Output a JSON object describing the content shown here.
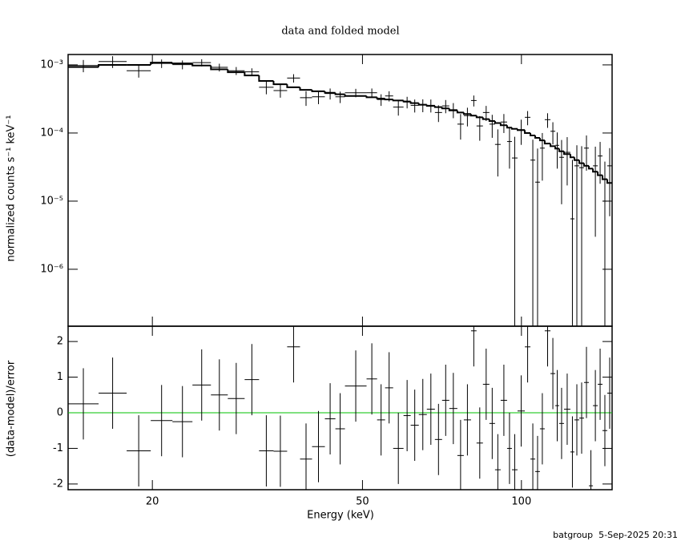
{
  "chart_data": [
    {
      "type": "errorbar",
      "title": "data and folded model",
      "y_label": "normalized counts s⁻¹ keV⁻¹",
      "xlog": true,
      "ylog": true,
      "xlim": [
        13.85,
        148.5
      ],
      "ylim": [
        1.46e-07,
        0.00142
      ],
      "yticks": [
        {
          "value": 1e-06,
          "label": "10⁻⁶"
        },
        {
          "value": 1e-05,
          "label": "10⁻⁵"
        },
        {
          "value": 0.0001,
          "label": "10⁻⁴"
        },
        {
          "value": 0.001,
          "label": "10⁻³"
        }
      ],
      "energy_lo": [
        13.85,
        15.82,
        17.88,
        19.86,
        21.83,
        23.82,
        25.82,
        27.79,
        29.91,
        31.85,
        33.93,
        36.0,
        38.08,
        40.13,
        42.44,
        44.43,
        46.32,
        50.9,
        53.29,
        55.18,
        57.16,
        59.8,
        61.7,
        63.92,
        66.2,
        68.57,
        70.75,
        73.01,
        75.63,
        77.78,
        80.27,
        82.23,
        84.55,
        86.96,
        89.12,
        91.34,
        93.94,
        95.94,
        98.32,
        101.5,
        104.0,
        106.2,
        108.4,
        110.7,
        113.5,
        115.9,
        117.9,
        120.4,
        123.8,
        126.0,
        128.7,
        131.4,
        134.2,
        136.6,
        139.5,
        142.4,
        145.4
      ],
      "energy_hi": [
        15.82,
        17.88,
        19.86,
        21.83,
        23.82,
        25.82,
        27.79,
        29.91,
        31.85,
        33.93,
        36.0,
        38.08,
        40.13,
        42.44,
        44.43,
        46.32,
        50.9,
        53.29,
        55.18,
        57.16,
        59.8,
        61.7,
        63.92,
        66.2,
        68.57,
        70.75,
        73.01,
        75.63,
        77.78,
        80.27,
        82.23,
        84.55,
        86.96,
        89.12,
        91.34,
        93.94,
        95.94,
        98.32,
        101.5,
        104.0,
        106.2,
        108.4,
        110.7,
        113.5,
        115.9,
        117.9,
        120.4,
        123.8,
        126.0,
        128.7,
        131.4,
        134.2,
        136.6,
        139.5,
        142.4,
        145.4,
        148.5
      ],
      "values": [
        0.00098,
        0.00112,
        0.00082,
        0.00105,
        0.00101,
        0.00108,
        0.00092,
        0.00082,
        0.00079,
        0.00047,
        0.00042,
        0.00064,
        0.00033,
        0.00034,
        0.00038,
        0.00034,
        0.00039,
        0.00039,
        0.00031,
        0.00035,
        0.00024,
        0.000285,
        0.000255,
        0.000257,
        0.000255,
        0.0002,
        0.00025,
        0.00022,
        0.000135,
        0.00018,
        0.0003,
        0.000127,
        0.0002,
        0.000135,
        6.8e-05,
        0.000145,
        7.5e-05,
        4.3e-05,
        0.000112,
        0.00017,
        4e-05,
        1.9e-05,
        6e-05,
        0.000157,
        0.000106,
        6.6e-05,
        4.4e-05,
        5.2e-05,
        5.5e-06,
        3.3e-05,
        3.1e-05,
        6e-05,
        -3.2e-05,
        3.3e-05,
        4.6e-05,
        1e-05,
        3.3e-05
      ],
      "errors": [
        0.0002,
        0.00022,
        0.00017,
        0.00015,
        0.00015,
        0.00013,
        0.00012,
        0.00011,
        0.0001,
        0.0001,
        9e-05,
        9e-05,
        8e-05,
        7.5e-05,
        7e-05,
        6.5e-05,
        5.5e-05,
        6e-05,
        6e-05,
        6e-05,
        6e-05,
        5.5e-05,
        5.5e-05,
        5.5e-05,
        5.5e-05,
        5.5e-05,
        5.5e-05,
        5.5e-05,
        5.5e-05,
        5.5e-05,
        5.5e-05,
        5e-05,
        5e-05,
        5e-05,
        4.5e-05,
        4.5e-05,
        4.5e-05,
        4.5e-05,
        4.5e-05,
        4e-05,
        4e-05,
        4e-05,
        4e-05,
        3.8e-05,
        3.8e-05,
        3.6e-05,
        3.5e-05,
        3.5e-05,
        3.5e-05,
        3.3e-05,
        3.3e-05,
        3.2e-05,
        3e-05,
        3e-05,
        2.8e-05,
        2.8e-05,
        2.7e-05
      ],
      "model": [
        0.00093,
        0.001,
        0.001,
        0.00108,
        0.00105,
        0.00098,
        0.00086,
        0.00078,
        0.0007,
        0.00058,
        0.00052,
        0.00047,
        0.00043,
        0.00041,
        0.00039,
        0.00037,
        0.00035,
        0.000335,
        0.00032,
        0.00031,
        0.0003,
        0.00029,
        0.000275,
        0.00026,
        0.00025,
        0.00024,
        0.00023,
        0.000215,
        0.0002,
        0.00019,
        0.00018,
        0.00017,
        0.00016,
        0.00015,
        0.00014,
        0.00013,
        0.00012,
        0.000115,
        0.00011,
        0.0001,
        9.2e-05,
        8.5e-05,
        7.8e-05,
        7e-05,
        6.4e-05,
        5.9e-05,
        5.4e-05,
        4.9e-05,
        4.4e-05,
        4e-05,
        3.6e-05,
        3.3e-05,
        3e-05,
        2.7e-05,
        2.4e-05,
        2.1e-05,
        1.85e-05
      ],
      "color": "#000000"
    },
    {
      "type": "errorbar",
      "x_label": "Energy (keV)",
      "y_label": "(data-model)/error",
      "xlog": true,
      "xlim": [
        13.85,
        148.5
      ],
      "xticks": [
        20,
        50,
        100
      ],
      "ylim": [
        -2.16,
        2.43
      ],
      "yticks": [
        -2,
        -1,
        0,
        1,
        2
      ],
      "energy_lo": [
        13.85,
        15.82,
        17.88,
        19.86,
        21.83,
        23.82,
        25.82,
        27.79,
        29.91,
        31.85,
        33.93,
        36.0,
        38.08,
        40.13,
        42.44,
        44.43,
        46.32,
        50.9,
        53.29,
        55.18,
        57.16,
        59.8,
        61.7,
        63.92,
        66.2,
        68.57,
        70.75,
        73.01,
        75.63,
        77.78,
        80.27,
        82.23,
        84.55,
        86.96,
        89.12,
        91.34,
        93.94,
        95.94,
        98.32,
        101.5,
        104.0,
        106.2,
        108.4,
        110.7,
        113.5,
        115.9,
        117.9,
        120.4,
        123.8,
        126.0,
        128.7,
        131.4,
        134.2,
        136.6,
        139.5,
        142.4,
        145.4
      ],
      "energy_hi": [
        15.82,
        17.88,
        19.86,
        21.83,
        23.82,
        25.82,
        27.79,
        29.91,
        31.85,
        33.93,
        36.0,
        38.08,
        40.13,
        42.44,
        44.43,
        46.32,
        50.9,
        53.29,
        55.18,
        57.16,
        59.8,
        61.7,
        63.92,
        66.2,
        68.57,
        70.75,
        73.01,
        75.63,
        77.78,
        80.27,
        82.23,
        84.55,
        86.96,
        89.12,
        91.34,
        93.94,
        95.94,
        98.32,
        101.5,
        104.0,
        106.2,
        108.4,
        110.7,
        113.5,
        115.9,
        117.9,
        120.4,
        123.8,
        126.0,
        128.7,
        131.4,
        134.2,
        136.6,
        139.5,
        142.4,
        145.4,
        148.5
      ],
      "values": [
        0.25,
        0.55,
        -1.07,
        -0.22,
        -0.25,
        0.78,
        0.5,
        0.4,
        0.93,
        -1.07,
        -1.08,
        1.85,
        -1.3,
        -0.95,
        -0.17,
        -0.45,
        0.75,
        0.95,
        -0.2,
        0.7,
        -1.0,
        -0.08,
        -0.35,
        -0.05,
        0.1,
        -0.75,
        0.35,
        0.12,
        -1.2,
        -0.2,
        2.3,
        -0.85,
        0.8,
        -0.3,
        -1.6,
        0.35,
        -1.0,
        -1.6,
        0.05,
        1.85,
        -1.3,
        -1.65,
        -0.45,
        2.3,
        1.1,
        0.2,
        -0.3,
        0.1,
        -1.1,
        -0.2,
        -0.15,
        0.85,
        -2.05,
        0.2,
        0.8,
        -0.5,
        0.55
      ],
      "errors": [
        1,
        1,
        1,
        1,
        1,
        1,
        1,
        1,
        1,
        1,
        1,
        1,
        1,
        1,
        1,
        1,
        1,
        1,
        1,
        1,
        1,
        1,
        1,
        1,
        1,
        1,
        1,
        1,
        1,
        1,
        1,
        1,
        1,
        1,
        1,
        1,
        1,
        1,
        1,
        1,
        1,
        1,
        1,
        1,
        1,
        1,
        1,
        1,
        1,
        1,
        1,
        1,
        1,
        1,
        1,
        1,
        1
      ],
      "reference_line": 0,
      "reference_color": "#00c000",
      "color": "#000000"
    }
  ],
  "footer": "batgroup  5-Sep-2025 20:31"
}
